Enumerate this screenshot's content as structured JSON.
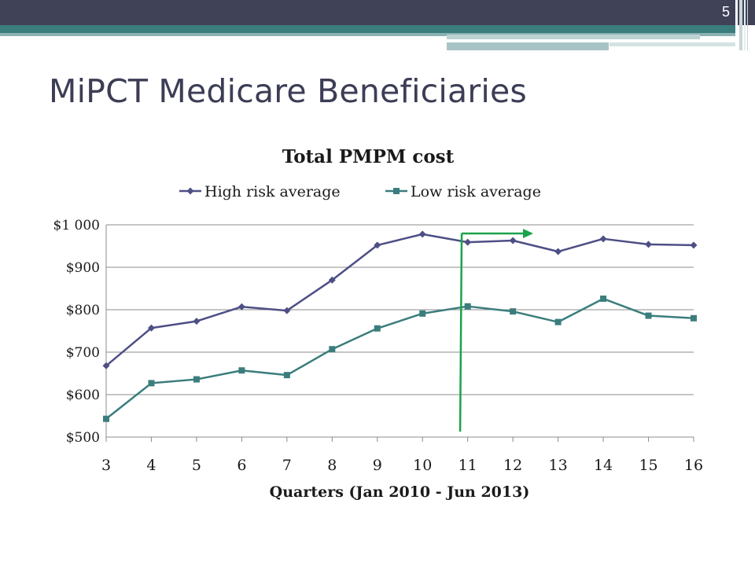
{
  "slide": {
    "title": "MiPCT Medicare Beneficiaries",
    "page_number": "5"
  },
  "colors": {
    "header_band": "#404258",
    "teal_band": "#3b7d7d",
    "title_text": "#3c3d55",
    "high_risk": "#4e4f85",
    "low_risk": "#3b7d7d",
    "annotation": "#1aa34a"
  },
  "chart_data": {
    "type": "line",
    "title": "Total PMPM cost",
    "xlabel": "Quarters (Jan 2010 - Jun 2013)",
    "ylabel": "",
    "x": [
      3,
      4,
      5,
      6,
      7,
      8,
      9,
      10,
      11,
      12,
      13,
      14,
      15,
      16
    ],
    "ylim": [
      500,
      1000
    ],
    "yticks": [
      500,
      600,
      700,
      800,
      900,
      1000
    ],
    "ytick_labels": [
      "$500",
      "$600",
      "$700",
      "$800",
      "$900",
      "$1 000"
    ],
    "grid": true,
    "legend_position": "top",
    "series": [
      {
        "name": "High risk average",
        "marker": "diamond",
        "values": [
          668,
          757,
          773,
          807,
          798,
          870,
          952,
          978,
          959,
          963,
          937,
          967,
          954,
          952
        ]
      },
      {
        "name": "Low risk average",
        "marker": "square",
        "values": [
          543,
          627,
          636,
          657,
          646,
          707,
          756,
          791,
          808,
          796,
          771,
          826,
          786,
          780
        ]
      }
    ],
    "annotations": [
      {
        "type": "vertical-line-arrow",
        "x": 10.85,
        "direction": "right"
      }
    ]
  }
}
